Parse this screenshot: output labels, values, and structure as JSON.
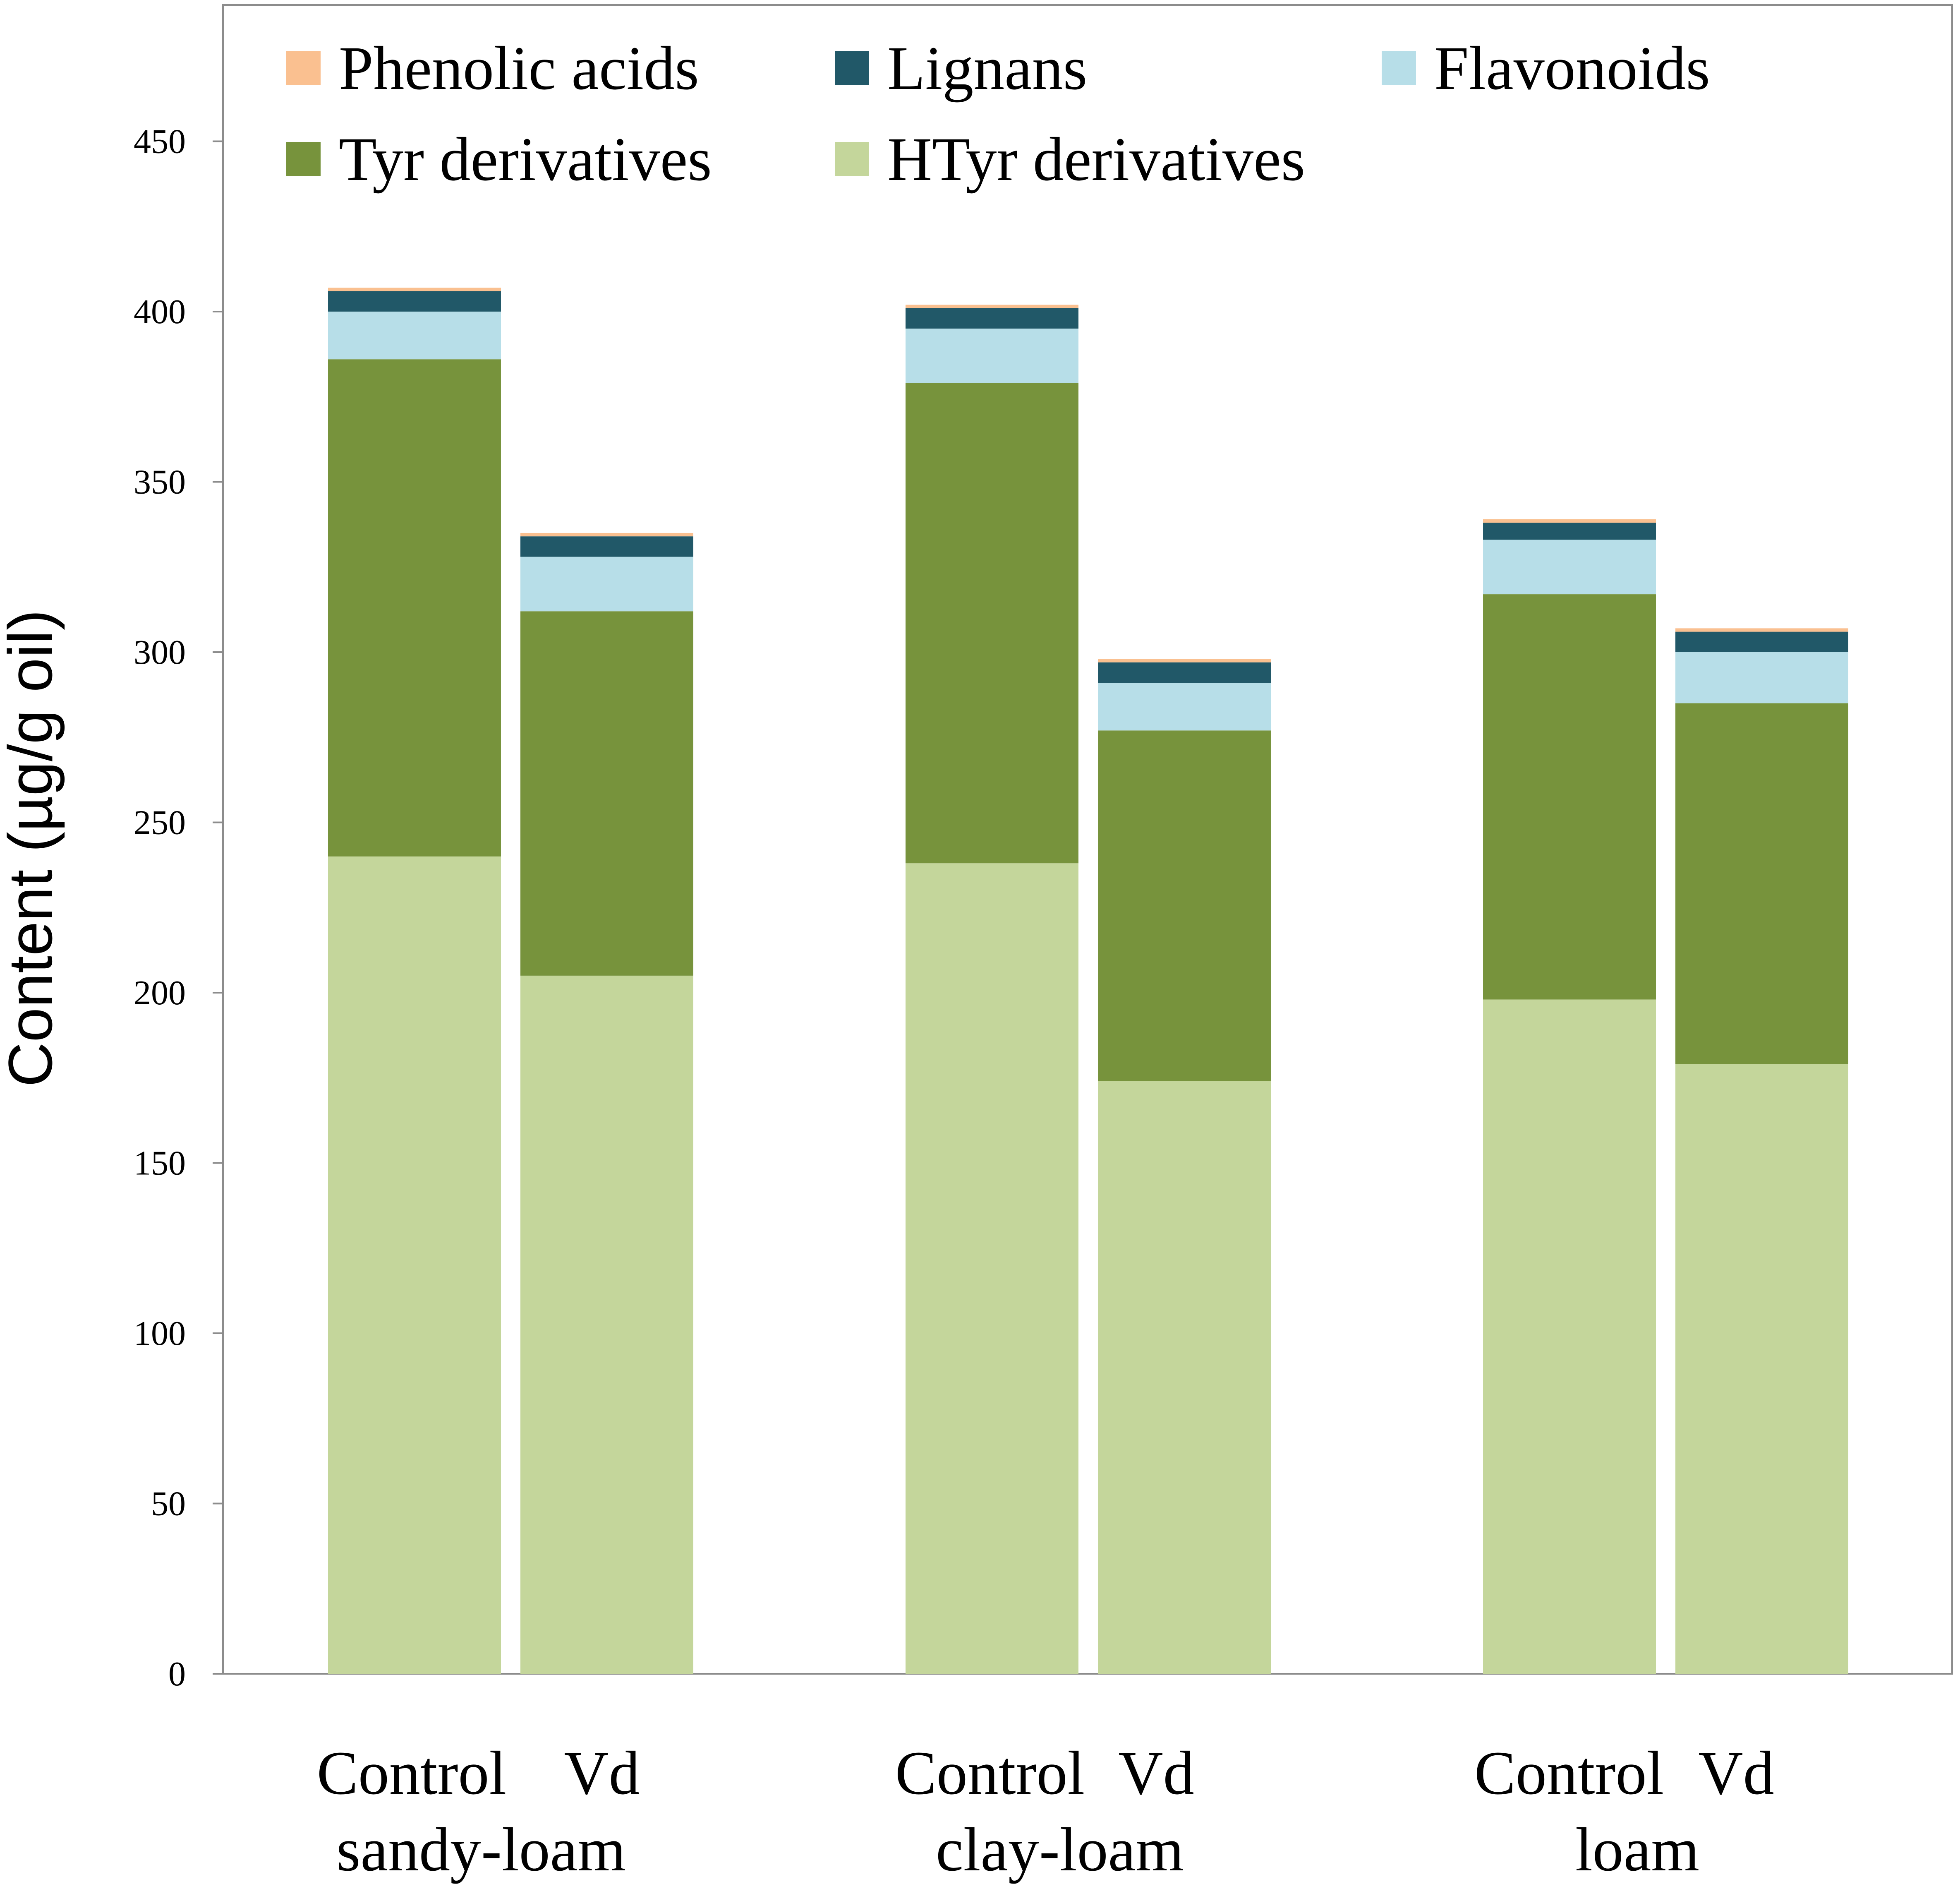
{
  "chart_data": {
    "type": "bar",
    "stacked": true,
    "title": "",
    "xlabel": "",
    "ylabel": "Content (µg/g oil)",
    "ylim": [
      0,
      490
    ],
    "yticks": [
      0,
      50,
      100,
      150,
      200,
      250,
      300,
      350,
      400,
      450
    ],
    "grid": false,
    "legend_position": "top",
    "bars": [
      "Control",
      "Vd",
      "Control",
      "Vd",
      "Control",
      "Vd"
    ],
    "groups": [
      {
        "name": "sandy-loam",
        "bar_labels": [
          "Control",
          "Vd"
        ]
      },
      {
        "name": "clay-loam",
        "bar_labels": [
          "Control",
          "Vd"
        ]
      },
      {
        "name": "loam",
        "bar_labels": [
          "Control",
          "Vd"
        ]
      }
    ],
    "series": [
      {
        "name": "HTyr derivatives",
        "color": "#c4d69b",
        "values": [
          240,
          205,
          238,
          174,
          198,
          179
        ]
      },
      {
        "name": "Tyr derivatives",
        "color": "#77933c",
        "values": [
          146,
          107,
          141,
          103,
          119,
          106
        ]
      },
      {
        "name": "Flavonoids",
        "color": "#b7dee8",
        "values": [
          14,
          16,
          16,
          14,
          16,
          15
        ]
      },
      {
        "name": "Lignans",
        "color": "#215868",
        "values": [
          6,
          6,
          6,
          6,
          5,
          6
        ]
      },
      {
        "name": "Phenolic acids",
        "color": "#fac090",
        "values": [
          1,
          1,
          1,
          1,
          1,
          1
        ]
      }
    ],
    "legend_order": [
      "Phenolic acids",
      "Lignans",
      "Flavonoids",
      "Tyr derivatives",
      "HTyr derivatives"
    ]
  }
}
